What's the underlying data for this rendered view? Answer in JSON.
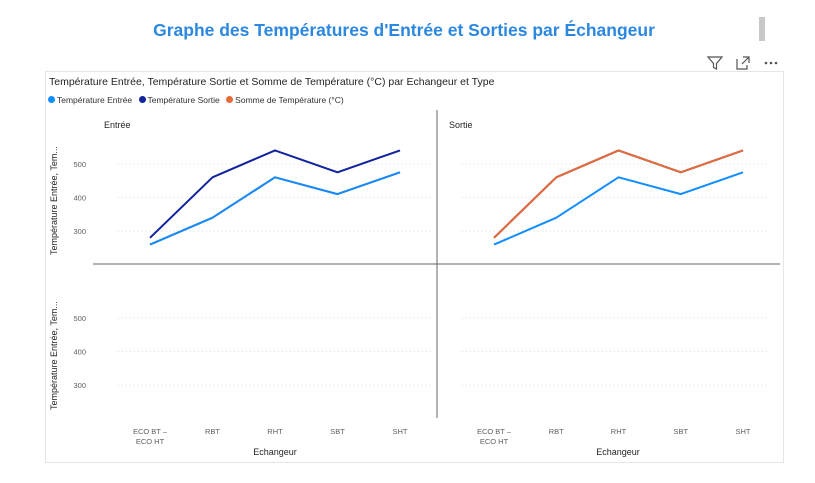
{
  "page": {
    "title": "Graphe des Températures d'Entrée et Sorties par Échangeur"
  },
  "toolbar": {
    "filter_icon": "filter-icon",
    "focus_icon": "focus-mode-icon",
    "more_icon": "more-options-icon"
  },
  "colors": {
    "temp_entree": "#118dff",
    "temp_sortie": "#12239e",
    "somme_temp": "#e66c37",
    "title_blue": "#2b87e0"
  },
  "chart_data": {
    "type": "line",
    "title": "Température Entrée, Température Sortie et Somme de Température (°C) par Echangeur et Type",
    "xlabel": "Echangeur",
    "ylabel": "Température Entrée, Tem...",
    "categories": [
      "ECO BT – ECO HT",
      "RBT",
      "RHT",
      "SBT",
      "SHT"
    ],
    "category_lines": [
      [
        "ECO BT –",
        "ECO HT"
      ],
      [
        "RBT"
      ],
      [
        "RHT"
      ],
      [
        "SBT"
      ],
      [
        "SHT"
      ]
    ],
    "ylim": [
      220,
      580
    ],
    "yticks": [
      300,
      400,
      500
    ],
    "grid": true,
    "legend_position": "top-left",
    "legend": [
      "Température Entrée",
      "Température Sortie",
      "Somme de Température (°C)"
    ],
    "columns": [
      "Entrée",
      "Sortie"
    ],
    "panels": [
      {
        "column": "Entrée",
        "series": [
          {
            "name": "Température Sortie",
            "values": [
              280,
              460,
              540,
              475,
              540
            ]
          },
          {
            "name": "Somme de Température (°C)",
            "values": [
              260,
              340,
              460,
              410,
              475
            ]
          },
          {
            "name": "Température Entrée",
            "values": [
              260,
              340,
              460,
              410,
              475
            ]
          }
        ]
      },
      {
        "column": "Sortie",
        "series": [
          {
            "name": "Température Entrée",
            "values": [
              260,
              340,
              460,
              410,
              475
            ]
          },
          {
            "name": "Température Sortie",
            "values": [
              280,
              460,
              540,
              475,
              540
            ]
          },
          {
            "name": "Somme de Température (°C)",
            "values": [
              280,
              460,
              540,
              475,
              540
            ]
          }
        ]
      }
    ]
  }
}
